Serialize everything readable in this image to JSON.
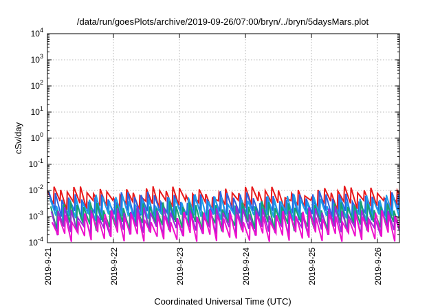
{
  "chart_data": {
    "type": "line",
    "title": "/data/run/goesPlots/archive/2019-09-26/07:00/bryn/../bryn/5daysMars.plot",
    "xlabel": "Coordinated Universal Time (UTC)",
    "ylabel": "cSv/day",
    "yscale": "log",
    "ylim": [
      0.0001,
      10000
    ],
    "xlim_days": [
      0,
      5.35
    ],
    "grid": true,
    "y_ticks": [
      {
        "base": "10",
        "exp": "4",
        "value": 10000
      },
      {
        "base": "10",
        "exp": "3",
        "value": 1000
      },
      {
        "base": "10",
        "exp": "2",
        "value": 100
      },
      {
        "base": "10",
        "exp": "1",
        "value": 10
      },
      {
        "base": "10",
        "exp": "0",
        "value": 1
      },
      {
        "base": "10",
        "exp": "-1",
        "value": 0.1
      },
      {
        "base": "10",
        "exp": "-2",
        "value": 0.01
      },
      {
        "base": "10",
        "exp": "-3",
        "value": 0.001
      },
      {
        "base": "10",
        "exp": "-4",
        "value": 0.0001
      }
    ],
    "x_ticks": [
      {
        "label": "2019-9-21",
        "day": 0
      },
      {
        "label": "2019-9-22",
        "day": 1
      },
      {
        "label": "2019-9-23",
        "day": 2
      },
      {
        "label": "2019-9-24",
        "day": 3
      },
      {
        "label": "2019-9-25",
        "day": 4
      },
      {
        "label": "2019-9-26",
        "day": 5
      }
    ],
    "sawtooth_period_days": 0.1,
    "series": [
      {
        "color": "#e8191b",
        "peak": 0.0095,
        "trough": 0.003,
        "phase": 0.0
      },
      {
        "color": "#2a62e0",
        "peak": 0.006,
        "trough": 0.0012,
        "phase": 0.02
      },
      {
        "color": "#1e9ee8",
        "peak": 0.0045,
        "trough": 0.0009,
        "phase": 0.035
      },
      {
        "color": "#18a070",
        "peak": 0.0025,
        "trough": 0.00045,
        "phase": 0.05
      },
      {
        "color": "#9b2bd6",
        "peak": 0.0016,
        "trough": 0.0003,
        "phase": 0.06
      },
      {
        "color": "#ee11cc",
        "peak": 0.0011,
        "trough": 0.00018,
        "phase": 0.07
      }
    ]
  }
}
